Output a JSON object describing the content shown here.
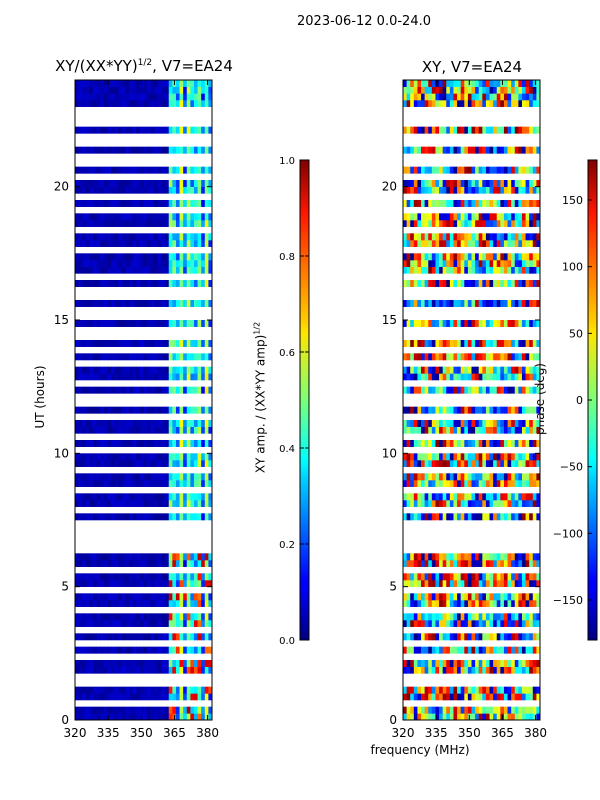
{
  "suptitle": "2023-06-12 0.0-24.0",
  "chart_data": [
    {
      "type": "heatmap",
      "title": "XY/(XX*YY)^1/2, V7=EA24",
      "title_main": "XY/(XX*YY)",
      "title_sup": "1/2",
      "title_tail": ", V7=EA24",
      "xlabel": "",
      "ylabel": "UT (hours)",
      "xlim": [
        320,
        382
      ],
      "ylim": [
        0,
        24
      ],
      "xticks": [
        320,
        335,
        350,
        365,
        380
      ],
      "yticks": [
        0,
        5,
        10,
        15,
        20
      ],
      "colorbar": {
        "label": "XY amp. / (XX*YY amp)^1/2",
        "label_main": "XY amp. / (XX*YY amp)",
        "label_sup": "1/2",
        "range": [
          0.0,
          1.0
        ],
        "ticks": [
          "0.0",
          "0.2",
          "0.4",
          "0.6",
          "0.8",
          "1.0"
        ]
      },
      "colormap": "jet"
    },
    {
      "type": "heatmap",
      "title": "XY, V7=EA24",
      "xlabel": "frequency (MHz)",
      "ylabel": "",
      "xlim": [
        320,
        382
      ],
      "ylim": [
        0,
        24
      ],
      "xticks": [
        320,
        335,
        350,
        365,
        380
      ],
      "yticks": [
        0,
        5,
        10,
        15,
        20
      ],
      "colorbar": {
        "label": "phase (deg)",
        "range": [
          -180,
          180
        ],
        "ticks": [
          "−150",
          "−100",
          "−50",
          "0",
          "50",
          "100",
          "150"
        ]
      },
      "colormap": "jet"
    }
  ]
}
